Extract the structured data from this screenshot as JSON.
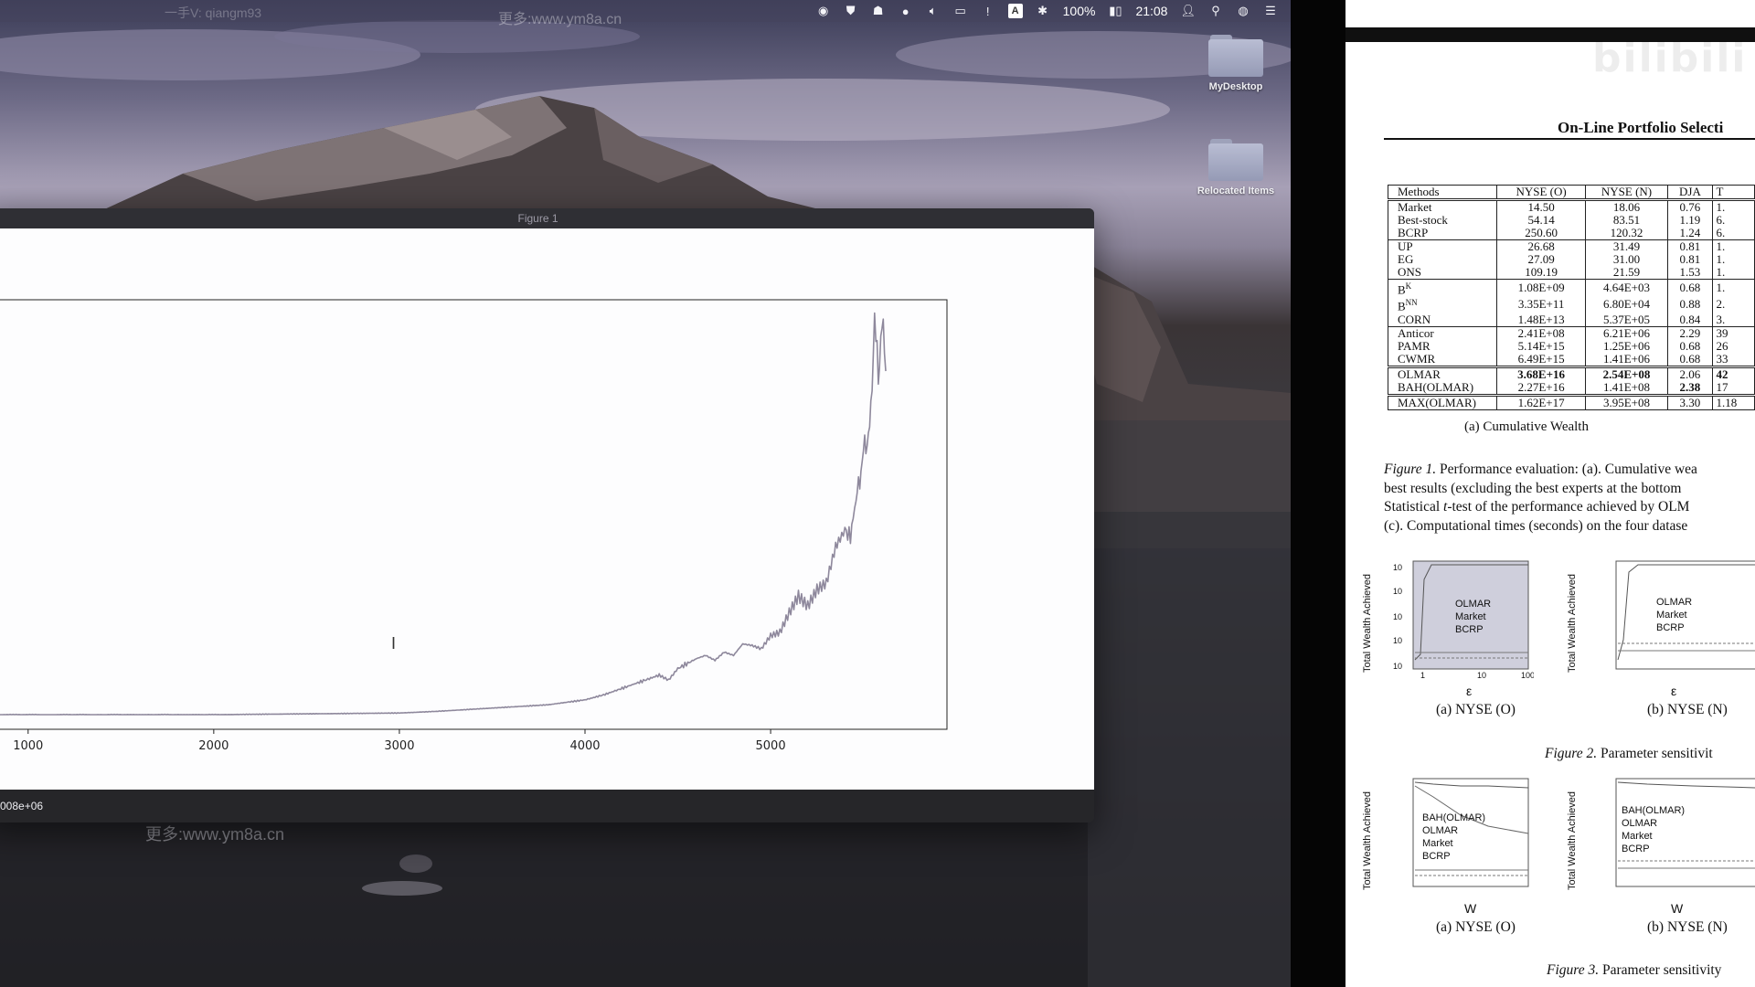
{
  "desktop": {
    "menubar": {
      "watermark_left": "一手V: qiangm93",
      "watermark_center": "更多:www.ym8a.cn",
      "battery_percent": "100%",
      "time": "21:08",
      "input_source": "A"
    },
    "icons": [
      {
        "label": "MyDesktop"
      },
      {
        "label": "Relocated Items"
      }
    ],
    "watermark_bottom": "更多:www.ym8a.cn"
  },
  "figure_window": {
    "title": "Figure 1",
    "status_text": "008e+06",
    "chart_data": {
      "type": "line",
      "title": "",
      "xlabel": "",
      "ylabel": "",
      "xlim": [
        750,
        5950
      ],
      "x_ticks": [
        "1000",
        "2000",
        "3000",
        "4000",
        "5000"
      ],
      "x_tick_values": [
        1000,
        2000,
        3000,
        4000,
        5000
      ],
      "line_color": "#8e889c",
      "series": [
        {
          "x": [
            750,
            1000,
            2000,
            3000,
            3200,
            3500,
            3800,
            4000,
            4100,
            4200,
            4300,
            4400,
            4450,
            4500,
            4600,
            4650,
            4700,
            4750,
            4800,
            4850,
            4900,
            4950,
            5000,
            5050,
            5100,
            5150,
            5200,
            5250,
            5300,
            5350,
            5400,
            5430,
            5460,
            5480,
            5500,
            5520,
            5540,
            5560,
            5580,
            5600,
            5620
          ],
          "y": [
            0.0,
            0.0,
            0.0,
            0.01,
            0.02,
            0.04,
            0.06,
            0.09,
            0.12,
            0.16,
            0.2,
            0.24,
            0.21,
            0.28,
            0.34,
            0.36,
            0.33,
            0.38,
            0.36,
            0.43,
            0.42,
            0.4,
            0.48,
            0.5,
            0.62,
            0.72,
            0.66,
            0.76,
            0.8,
            1.02,
            1.12,
            1.08,
            1.31,
            1.42,
            1.61,
            1.65,
            1.82,
            2.42,
            2.05,
            2.38,
            2.15
          ]
        }
      ]
    }
  },
  "pdf": {
    "page_title": "On-Line Portfolio Selecti",
    "table": {
      "headers": [
        "Methods",
        "NYSE (O)",
        "NYSE (N)",
        "DJA",
        "T"
      ],
      "groups": [
        [
          [
            "Market",
            "14.50",
            "18.06",
            "0.76",
            "1."
          ],
          [
            "Best-stock",
            "54.14",
            "83.51",
            "1.19",
            "6."
          ],
          [
            "BCRP",
            "250.60",
            "120.32",
            "1.24",
            "6."
          ]
        ],
        [
          [
            "UP",
            "26.68",
            "31.49",
            "0.81",
            "1."
          ],
          [
            "EG",
            "27.09",
            "31.00",
            "0.81",
            "1."
          ],
          [
            "ONS",
            "109.19",
            "21.59",
            "1.53",
            "1."
          ]
        ],
        [
          [
            "B",
            "1.08E+09",
            "4.64E+03",
            "0.68",
            "1."
          ],
          [
            "B",
            "3.35E+11",
            "6.80E+04",
            "0.88",
            "2."
          ],
          [
            "CORN",
            "1.48E+13",
            "5.37E+05",
            "0.84",
            "3."
          ]
        ],
        [
          [
            "Anticor",
            "2.41E+08",
            "6.21E+06",
            "2.29",
            "39"
          ],
          [
            "PAMR",
            "5.14E+15",
            "1.25E+06",
            "0.68",
            "26"
          ],
          [
            "CWMR",
            "6.49E+15",
            "1.41E+06",
            "0.68",
            "33"
          ]
        ],
        [
          [
            "OLMAR",
            "3.68E+16",
            "2.54E+08",
            "2.06",
            "42"
          ],
          [
            "BAH(OLMAR)",
            "2.27E+16",
            "1.41E+08",
            "2.38",
            "17"
          ]
        ],
        [
          [
            "MAX(OLMAR)",
            "1.62E+17",
            "3.95E+08",
            "3.30",
            "1.18"
          ]
        ]
      ],
      "superscripts": {
        "bk": "K",
        "bnn": "NN"
      },
      "subcaption": "(a) Cumulative Wealth"
    },
    "caption": {
      "label": "Figure 1.",
      "line1": "Performance evaluation: (a). Cumulative wea",
      "line2": "best results (excluding the best experts at the bottom",
      "line3_a": "Statistical ",
      "line3_t": "t",
      "line3_b": "-test of the performance achieved by OLM",
      "line4": "(c). Computational times (seconds) on the four datase"
    },
    "fig2": {
      "ylabel": "Total Wealth Achieved",
      "yticks_a": [
        "10",
        "10",
        "10",
        "10",
        "10"
      ],
      "xlabel": "ε",
      "legend_a": [
        "OLMAR",
        "Market",
        "BCRP"
      ],
      "legend_b": [
        "OLMAR",
        "Market",
        "BCRP"
      ],
      "cap_a": "(a) NYSE (O)",
      "cap_b": "(b) NYSE (N)",
      "caption_label": "Figure 2.",
      "caption_text": "Parameter sensitivit"
    },
    "fig3": {
      "ylabel": "Total Wealth Achieved",
      "xlabel": "W",
      "legend_a": [
        "BAH(OLMAR)",
        "OLMAR",
        "Market",
        "BCRP"
      ],
      "legend_b": [
        "BAH(OLMAR)",
        "OLMAR",
        "Market",
        "BCRP"
      ],
      "cap_a": "(a) NYSE (O)",
      "cap_b": "(b) NYSE (N)",
      "caption_label": "Figure 3.",
      "caption_text": "Parameter sensitivity"
    }
  }
}
